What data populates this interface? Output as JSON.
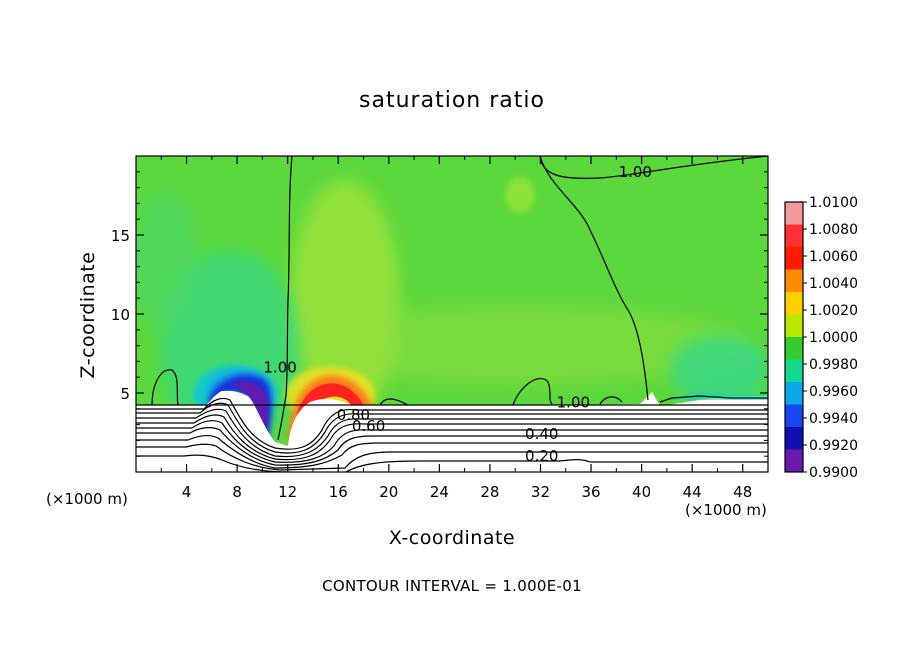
{
  "chart_data": {
    "type": "heatmap",
    "title": "saturation ratio",
    "xlabel": "X-coordinate",
    "ylabel": "Z-coordinate",
    "x_unit_label": "(×1000 m)",
    "xlim": [
      0,
      50
    ],
    "ylim": [
      0,
      20
    ],
    "x_ticks": [
      4,
      8,
      12,
      16,
      20,
      24,
      28,
      32,
      36,
      40,
      44,
      48
    ],
    "y_ticks": [
      5,
      10,
      15
    ],
    "colorbar": {
      "levels": [
        "1.0100",
        "1.0080",
        "1.0060",
        "1.0040",
        "1.0020",
        "1.0000",
        "0.9980",
        "0.9960",
        "0.9940",
        "0.9920",
        "0.9900"
      ],
      "colors": [
        "#f59a9a",
        "#ff3030",
        "#ff1a00",
        "#ff8c00",
        "#ffd000",
        "#b8e800",
        "#33cc33",
        "#12d890",
        "#0aa8e8",
        "#1846f0",
        "#1010b0",
        "#6a1aa8"
      ]
    },
    "contour_labels": [
      {
        "text": "1.00",
        "x": 39.5,
        "z": 19.0
      },
      {
        "text": "1.00",
        "x": 11.4,
        "z": 6.6
      },
      {
        "text": "1.00",
        "x": 34.6,
        "z": 4.4
      },
      {
        "text": "0.80",
        "x": 17.2,
        "z": 3.6
      },
      {
        "text": "0.60",
        "x": 18.4,
        "z": 2.9
      },
      {
        "text": "0.40",
        "x": 32.1,
        "z": 2.4
      },
      {
        "text": "0.20",
        "x": 32.1,
        "z": 1.0
      }
    ],
    "contour_interval": "CONTOUR INTERVAL = 1.000E-01"
  }
}
